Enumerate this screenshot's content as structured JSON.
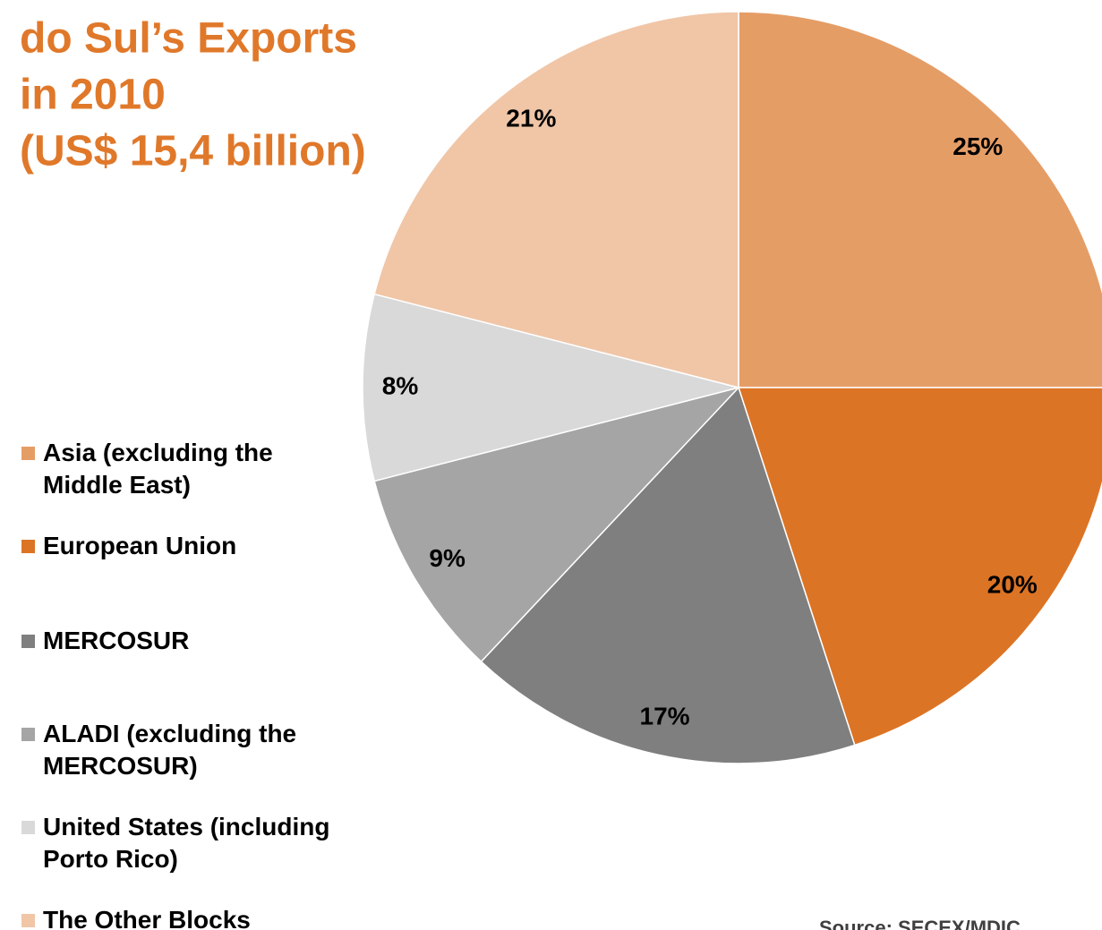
{
  "chart_data": {
    "type": "pie",
    "title": [
      "do Sul’s Exports",
      "in 2010",
      "(US$ 15,4 billion)"
    ],
    "categories": [
      "Asia (excluding the Middle East)",
      "European Union",
      "MERCOSUR",
      "ALADI (excluding the MERCOSUR)",
      "United States (including Porto Rico)",
      "The Other Blocks"
    ],
    "values": [
      25,
      20,
      17,
      9,
      8,
      21
    ],
    "value_labels": [
      "25%",
      "20%",
      "17%",
      "9%",
      "8%",
      "21%"
    ],
    "colors": [
      "#E59D66",
      "#DC7425",
      "#7F7F7F",
      "#A5A5A5",
      "#D9D9D9",
      "#F0C6A7"
    ],
    "source": "Source: SECEX/MDIC",
    "legend": "left"
  }
}
